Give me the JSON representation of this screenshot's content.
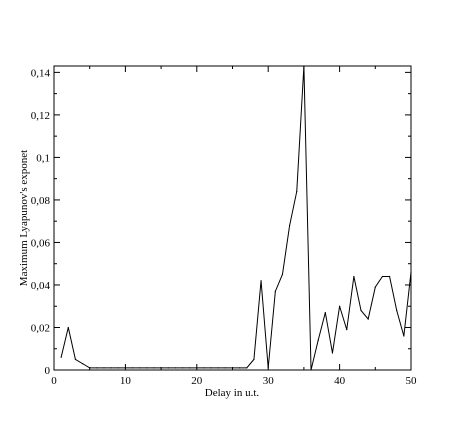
{
  "chart_data": {
    "type": "line",
    "xlabel": "Delay  in u.t.",
    "ylabel": "Maximum Lyapunov's exponet",
    "xlim": [
      0,
      50
    ],
    "ylim": [
      0,
      0.143
    ],
    "x_ticks": [
      0,
      10,
      20,
      30,
      40,
      50
    ],
    "x_tick_labels": [
      "0",
      "10",
      "20",
      "30",
      "40",
      "50"
    ],
    "y_ticks": [
      0,
      0.02,
      0.04,
      0.06,
      0.08,
      0.1,
      0.12,
      0.14
    ],
    "y_tick_labels": [
      "0",
      "0,02",
      "0,04",
      "0,06",
      "0,08",
      "0,1",
      "0,12",
      "0,14"
    ],
    "grid": false,
    "line_color": "#000000",
    "series": [
      {
        "x": [
          1,
          2,
          3,
          4,
          5,
          6,
          7,
          8,
          9,
          10,
          11,
          12,
          13,
          14,
          15,
          16,
          17,
          18,
          19,
          20,
          21,
          22,
          23,
          24,
          25,
          26,
          27,
          28,
          29,
          30,
          31,
          32,
          33,
          34,
          35,
          36,
          37,
          38,
          39,
          40,
          41,
          42,
          43,
          44,
          45,
          46,
          47,
          48,
          49,
          50
        ],
        "y": [
          0.006,
          0.02,
          0.005,
          0.003,
          0.001,
          0.001,
          0.001,
          0.001,
          0.001,
          0.001,
          0.001,
          0.001,
          0.001,
          0.001,
          0.001,
          0.001,
          0.001,
          0.001,
          0.001,
          0.001,
          0.001,
          0.001,
          0.001,
          0.001,
          0.001,
          0.001,
          0.001,
          0.005,
          0.042,
          0.001,
          0.037,
          0.045,
          0.068,
          0.084,
          0.145,
          0.0,
          0.014,
          0.027,
          0.008,
          0.03,
          0.019,
          0.044,
          0.028,
          0.024,
          0.039,
          0.044,
          0.044,
          0.028,
          0.016,
          0.046
        ]
      }
    ]
  }
}
